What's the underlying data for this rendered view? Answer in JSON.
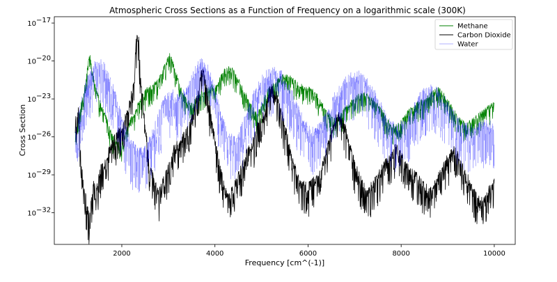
{
  "chart_data": {
    "type": "line",
    "title": "Atmospheric Cross Sections as a Function of Frequency on a logarithmic scale (300K)",
    "xlabel": "Frequency [cm^(-1)]",
    "ylabel": "Cross Section",
    "xlim": [
      550,
      10450
    ],
    "ylim_log10": [
      -34.5,
      -16.5
    ],
    "y_scale": "log",
    "grid": false,
    "legend_position": "top-right",
    "x_ticks": [
      {
        "value": 2000,
        "label": "2000"
      },
      {
        "value": 4000,
        "label": "4000"
      },
      {
        "value": 6000,
        "label": "6000"
      },
      {
        "value": 8000,
        "label": "8000"
      },
      {
        "value": 10000,
        "label": "10000"
      }
    ],
    "y_ticks": [
      {
        "value": -17,
        "label": "10",
        "exp": "−17"
      },
      {
        "value": -20,
        "label": "10",
        "exp": "−20"
      },
      {
        "value": -23,
        "label": "10",
        "exp": "−23"
      },
      {
        "value": -26,
        "label": "10",
        "exp": "−26"
      },
      {
        "value": -29,
        "label": "10",
        "exp": "−29"
      },
      {
        "value": -32,
        "label": "10",
        "exp": "−32"
      }
    ],
    "series": [
      {
        "name": "Methane",
        "color": "#008000",
        "noise": 0.8,
        "points": [
          [
            1000,
            -26.2
          ],
          [
            1080,
            -24.5
          ],
          [
            1150,
            -23.2
          ],
          [
            1220,
            -21.8
          ],
          [
            1280,
            -20.3
          ],
          [
            1310,
            -19.6
          ],
          [
            1360,
            -21.0
          ],
          [
            1450,
            -22.5
          ],
          [
            1550,
            -23.6
          ],
          [
            1650,
            -24.6
          ],
          [
            1750,
            -25.6
          ],
          [
            1850,
            -26.5
          ],
          [
            1950,
            -26.9
          ],
          [
            2050,
            -26.4
          ],
          [
            2150,
            -25.2
          ],
          [
            2250,
            -24.4
          ],
          [
            2350,
            -23.6
          ],
          [
            2450,
            -23.0
          ],
          [
            2550,
            -22.4
          ],
          [
            2650,
            -22.3
          ],
          [
            2750,
            -21.9
          ],
          [
            2850,
            -21.2
          ],
          [
            2950,
            -20.4
          ],
          [
            3020,
            -19.7
          ],
          [
            3100,
            -20.3
          ],
          [
            3200,
            -21.6
          ],
          [
            3300,
            -22.7
          ],
          [
            3400,
            -23.4
          ],
          [
            3500,
            -23.7
          ],
          [
            3600,
            -23.2
          ],
          [
            3700,
            -22.8
          ],
          [
            3800,
            -22.7
          ],
          [
            3900,
            -22.3
          ],
          [
            4000,
            -22.2
          ],
          [
            4100,
            -21.7
          ],
          [
            4200,
            -21.0
          ],
          [
            4300,
            -20.6
          ],
          [
            4400,
            -21.0
          ],
          [
            4500,
            -21.7
          ],
          [
            4600,
            -22.4
          ],
          [
            4700,
            -23.2
          ],
          [
            4800,
            -23.8
          ],
          [
            4900,
            -24.5
          ],
          [
            5000,
            -23.8
          ],
          [
            5100,
            -22.8
          ],
          [
            5200,
            -22.2
          ],
          [
            5300,
            -21.9
          ],
          [
            5400,
            -21.6
          ],
          [
            5500,
            -21.4
          ],
          [
            5600,
            -21.5
          ],
          [
            5700,
            -21.8
          ],
          [
            5800,
            -22.1
          ],
          [
            5900,
            -22.3
          ],
          [
            6000,
            -22.4
          ],
          [
            6100,
            -22.6
          ],
          [
            6200,
            -23.0
          ],
          [
            6300,
            -23.6
          ],
          [
            6400,
            -24.3
          ],
          [
            6500,
            -24.7
          ],
          [
            6600,
            -24.9
          ],
          [
            6700,
            -24.5
          ],
          [
            6800,
            -24.0
          ],
          [
            6900,
            -23.6
          ],
          [
            7000,
            -23.2
          ],
          [
            7100,
            -22.9
          ],
          [
            7200,
            -22.8
          ],
          [
            7300,
            -23.0
          ],
          [
            7400,
            -23.3
          ],
          [
            7500,
            -23.8
          ],
          [
            7600,
            -24.3
          ],
          [
            7700,
            -24.9
          ],
          [
            7800,
            -25.4
          ],
          [
            7900,
            -25.3
          ],
          [
            8000,
            -25.0
          ],
          [
            8100,
            -24.5
          ],
          [
            8200,
            -24.0
          ],
          [
            8300,
            -23.7
          ],
          [
            8400,
            -23.5
          ],
          [
            8500,
            -23.4
          ],
          [
            8600,
            -23.0
          ],
          [
            8700,
            -22.6
          ],
          [
            8800,
            -22.4
          ],
          [
            8900,
            -22.8
          ],
          [
            9000,
            -23.4
          ],
          [
            9100,
            -24.0
          ],
          [
            9200,
            -24.6
          ],
          [
            9300,
            -25.0
          ],
          [
            9400,
            -25.2
          ],
          [
            9500,
            -25.0
          ],
          [
            9600,
            -24.7
          ],
          [
            9700,
            -24.4
          ],
          [
            9800,
            -24.1
          ],
          [
            9900,
            -23.8
          ],
          [
            10000,
            -23.6
          ]
        ]
      },
      {
        "name": "Carbon Dioxide",
        "color": "#000000",
        "noise": 1.3,
        "points": [
          [
            1000,
            -25.2
          ],
          [
            1050,
            -24.0
          ],
          [
            1080,
            -24.5
          ],
          [
            1110,
            -27.5
          ],
          [
            1150,
            -29.2
          ],
          [
            1200,
            -30.6
          ],
          [
            1260,
            -31.9
          ],
          [
            1300,
            -32.8
          ],
          [
            1350,
            -31.2
          ],
          [
            1400,
            -30.0
          ],
          [
            1450,
            -30.7
          ],
          [
            1500,
            -29.5
          ],
          [
            1550,
            -28.8
          ],
          [
            1650,
            -28.2
          ],
          [
            1750,
            -27.2
          ],
          [
            1850,
            -26.3
          ],
          [
            1950,
            -25.8
          ],
          [
            2050,
            -25.1
          ],
          [
            2150,
            -24.0
          ],
          [
            2250,
            -22.2
          ],
          [
            2300,
            -19.3
          ],
          [
            2330,
            -17.6
          ],
          [
            2360,
            -18.3
          ],
          [
            2400,
            -21.5
          ],
          [
            2460,
            -24.0
          ],
          [
            2520,
            -26.0
          ],
          [
            2600,
            -28.5
          ],
          [
            2700,
            -29.9
          ],
          [
            2800,
            -30.8
          ],
          [
            2900,
            -29.6
          ],
          [
            3000,
            -28.8
          ],
          [
            3100,
            -27.4
          ],
          [
            3200,
            -26.9
          ],
          [
            3300,
            -26.3
          ],
          [
            3400,
            -25.8
          ],
          [
            3500,
            -24.9
          ],
          [
            3600,
            -23.4
          ],
          [
            3650,
            -22.8
          ],
          [
            3700,
            -21.4
          ],
          [
            3750,
            -21.2
          ],
          [
            3800,
            -22.0
          ],
          [
            3900,
            -24.2
          ],
          [
            4000,
            -26.5
          ],
          [
            4100,
            -28.5
          ],
          [
            4200,
            -30.3
          ],
          [
            4300,
            -31.2
          ],
          [
            4400,
            -30.2
          ],
          [
            4500,
            -29.3
          ],
          [
            4600,
            -28.5
          ],
          [
            4700,
            -27.4
          ],
          [
            4800,
            -27.0
          ],
          [
            4900,
            -25.5
          ],
          [
            5000,
            -24.9
          ],
          [
            5100,
            -23.9
          ],
          [
            5150,
            -22.9
          ],
          [
            5200,
            -22.3
          ],
          [
            5300,
            -23.0
          ],
          [
            5400,
            -23.8
          ],
          [
            5500,
            -25.4
          ],
          [
            5600,
            -27.1
          ],
          [
            5700,
            -28.6
          ],
          [
            5800,
            -29.6
          ],
          [
            5900,
            -30.1
          ],
          [
            6000,
            -30.3
          ],
          [
            6100,
            -29.8
          ],
          [
            6200,
            -29.4
          ],
          [
            6300,
            -28.6
          ],
          [
            6400,
            -27.5
          ],
          [
            6500,
            -25.7
          ],
          [
            6600,
            -24.9
          ],
          [
            6700,
            -24.5
          ],
          [
            6800,
            -25.6
          ],
          [
            6900,
            -27.0
          ],
          [
            7000,
            -28.4
          ],
          [
            7100,
            -29.4
          ],
          [
            7200,
            -30.1
          ],
          [
            7300,
            -30.6
          ],
          [
            7400,
            -29.9
          ],
          [
            7500,
            -29.4
          ],
          [
            7600,
            -28.7
          ],
          [
            7700,
            -28.2
          ],
          [
            7800,
            -27.5
          ],
          [
            7900,
            -27.1
          ],
          [
            8000,
            -27.8
          ],
          [
            8100,
            -28.5
          ],
          [
            8200,
            -28.8
          ],
          [
            8300,
            -29.3
          ],
          [
            8400,
            -29.6
          ],
          [
            8500,
            -30.2
          ],
          [
            8600,
            -30.6
          ],
          [
            8700,
            -30.1
          ],
          [
            8800,
            -29.4
          ],
          [
            8900,
            -28.6
          ],
          [
            9000,
            -27.9
          ],
          [
            9100,
            -27.3
          ],
          [
            9200,
            -27.6
          ],
          [
            9300,
            -28.5
          ],
          [
            9400,
            -29.3
          ],
          [
            9500,
            -30.2
          ],
          [
            9600,
            -30.9
          ],
          [
            9700,
            -31.3
          ],
          [
            9800,
            -31.0
          ],
          [
            9900,
            -30.4
          ],
          [
            10000,
            -29.8
          ]
        ]
      },
      {
        "name": "Water",
        "color": "#0000ff",
        "noise": 1.9,
        "points": [
          [
            1000,
            -25.6
          ],
          [
            1100,
            -24.3
          ],
          [
            1200,
            -22.8
          ],
          [
            1300,
            -21.6
          ],
          [
            1400,
            -21.0
          ],
          [
            1500,
            -20.7
          ],
          [
            1600,
            -20.9
          ],
          [
            1700,
            -21.6
          ],
          [
            1800,
            -22.6
          ],
          [
            1900,
            -23.8
          ],
          [
            2000,
            -25.0
          ],
          [
            2100,
            -26.1
          ],
          [
            2200,
            -27.0
          ],
          [
            2300,
            -27.5
          ],
          [
            2400,
            -27.7
          ],
          [
            2500,
            -27.4
          ],
          [
            2600,
            -26.8
          ],
          [
            2700,
            -25.9
          ],
          [
            2800,
            -24.8
          ],
          [
            2900,
            -23.8
          ],
          [
            3000,
            -23.1
          ],
          [
            3100,
            -23.0
          ],
          [
            3200,
            -23.4
          ],
          [
            3300,
            -23.2
          ],
          [
            3400,
            -22.6
          ],
          [
            3500,
            -21.9
          ],
          [
            3600,
            -21.1
          ],
          [
            3700,
            -20.7
          ],
          [
            3800,
            -20.8
          ],
          [
            3900,
            -21.6
          ],
          [
            4000,
            -22.9
          ],
          [
            4100,
            -24.3
          ],
          [
            4200,
            -25.6
          ],
          [
            4300,
            -26.5
          ],
          [
            4400,
            -26.8
          ],
          [
            4500,
            -26.4
          ],
          [
            4600,
            -25.6
          ],
          [
            4700,
            -24.6
          ],
          [
            4800,
            -23.6
          ],
          [
            4900,
            -22.7
          ],
          [
            5000,
            -22.1
          ],
          [
            5100,
            -21.6
          ],
          [
            5200,
            -21.4
          ],
          [
            5300,
            -21.4
          ],
          [
            5400,
            -21.5
          ],
          [
            5500,
            -22.0
          ],
          [
            5600,
            -22.7
          ],
          [
            5700,
            -23.6
          ],
          [
            5800,
            -24.5
          ],
          [
            5900,
            -25.3
          ],
          [
            6000,
            -25.8
          ],
          [
            6100,
            -26.1
          ],
          [
            6200,
            -26.0
          ],
          [
            6300,
            -25.5
          ],
          [
            6400,
            -24.7
          ],
          [
            6500,
            -23.9
          ],
          [
            6600,
            -23.2
          ],
          [
            6700,
            -22.6
          ],
          [
            6800,
            -22.1
          ],
          [
            6900,
            -21.8
          ],
          [
            7000,
            -21.7
          ],
          [
            7100,
            -21.7
          ],
          [
            7200,
            -22.0
          ],
          [
            7300,
            -22.4
          ],
          [
            7400,
            -23.0
          ],
          [
            7500,
            -23.7
          ],
          [
            7600,
            -24.4
          ],
          [
            7700,
            -25.1
          ],
          [
            7800,
            -25.6
          ],
          [
            7900,
            -25.9
          ],
          [
            8000,
            -25.7
          ],
          [
            8100,
            -25.3
          ],
          [
            8200,
            -24.7
          ],
          [
            8300,
            -24.0
          ],
          [
            8400,
            -23.4
          ],
          [
            8500,
            -23.0
          ],
          [
            8600,
            -22.8
          ],
          [
            8700,
            -22.8
          ],
          [
            8800,
            -23.0
          ],
          [
            8900,
            -23.4
          ],
          [
            9000,
            -24.0
          ],
          [
            9100,
            -24.6
          ],
          [
            9200,
            -25.2
          ],
          [
            9300,
            -25.6
          ],
          [
            9400,
            -25.8
          ],
          [
            9500,
            -25.9
          ],
          [
            9600,
            -25.8
          ],
          [
            9700,
            -25.7
          ],
          [
            9800,
            -25.6
          ],
          [
            9900,
            -25.6
          ],
          [
            10000,
            -25.7
          ]
        ]
      }
    ]
  }
}
